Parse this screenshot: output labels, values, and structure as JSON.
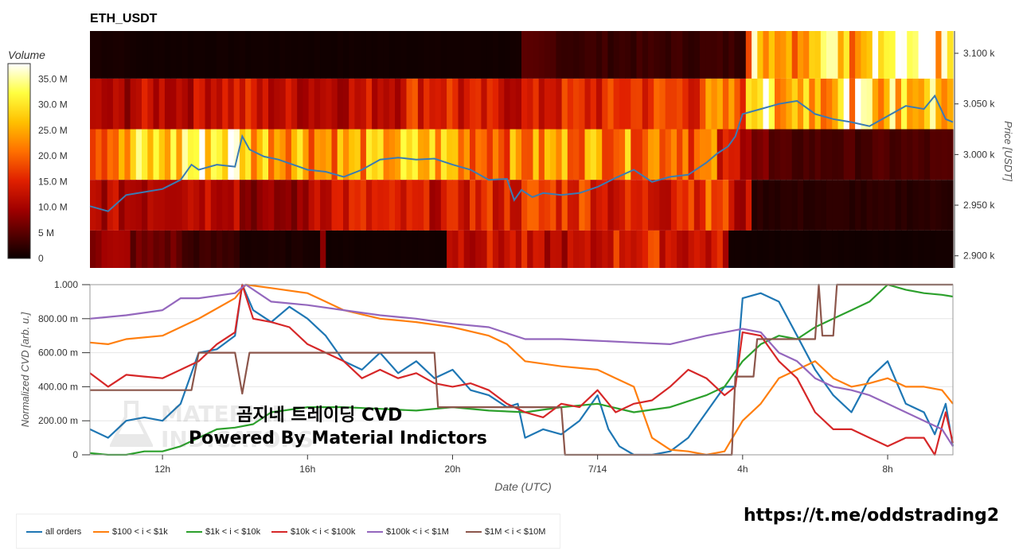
{
  "title": "ETH_USDT",
  "watermark": {
    "line1": "곰지네 트레이딩 CVD",
    "line2": "Powered By Material Indictors",
    "logo_line1": "MATERIAL",
    "logo_line2": "INDICATORS"
  },
  "url": "https://t.me/oddstrading2",
  "chart_data": [
    {
      "type": "heatmap",
      "title": "ETH_USDT",
      "ylabel": "Price [USDT]",
      "colorbar": {
        "title": "Volume",
        "ticks": [
          "0",
          "5 M",
          "10.0 M",
          "15.0 M",
          "20.0 M",
          "25.0 M",
          "30.0 M",
          "35.0 M"
        ],
        "range": [
          0,
          38
        ],
        "colorscale": "hot"
      },
      "price_ticks": [
        "2.900 k",
        "2.950 k",
        "3.000 k",
        "3.050 k",
        "3.100 k"
      ],
      "price_tick_values": [
        2900,
        2950,
        3000,
        3050,
        3100
      ],
      "ylim": [
        2888,
        3122
      ],
      "x_range_hours": [
        10.0,
        33.8
      ],
      "bands": [
        {
          "price_low": 3075,
          "price_high": 3122,
          "segments": [
            [
              10.0,
              1
            ],
            [
              11.0,
              0.5
            ],
            [
              21.8,
              4
            ],
            [
              23.0,
              3
            ],
            [
              28.5,
              6
            ],
            [
              33.8,
              6
            ]
          ],
          "after_shift": 30
        },
        {
          "price_low": 3025,
          "price_high": 3075,
          "segments": [
            [
              10.0,
              10
            ],
            [
              11.0,
              12
            ],
            [
              13.0,
              14
            ],
            [
              14.5,
              12
            ],
            [
              17.5,
              13
            ],
            [
              18.5,
              16
            ],
            [
              20.0,
              13
            ],
            [
              22.5,
              15
            ],
            [
              24.5,
              17
            ],
            [
              26.8,
              20
            ],
            [
              28.0,
              33
            ],
            [
              28.6,
              28
            ]
          ],
          "after_shift": 27
        },
        {
          "price_low": 2975,
          "price_high": 3025,
          "segments": [
            [
              10.0,
              22
            ],
            [
              11.0,
              28
            ],
            [
              12.5,
              33
            ],
            [
              14.2,
              27
            ],
            [
              16.0,
              24
            ],
            [
              18.0,
              26
            ],
            [
              20.0,
              22
            ],
            [
              22.5,
              24
            ],
            [
              24.5,
              23
            ],
            [
              26.5,
              20
            ],
            [
              27.2,
              13
            ],
            [
              28.2,
              7
            ],
            [
              28.6,
              4
            ]
          ],
          "after_shift": 6
        },
        {
          "price_low": 2925,
          "price_high": 2975,
          "segments": [
            [
              10.0,
              11
            ],
            [
              11.5,
              13
            ],
            [
              14.0,
              8
            ],
            [
              16.0,
              14
            ],
            [
              18.0,
              13
            ],
            [
              20.0,
              15
            ],
            [
              22.0,
              17
            ],
            [
              24.0,
              14
            ],
            [
              26.0,
              18
            ],
            [
              27.6,
              11
            ],
            [
              28.2,
              2
            ],
            [
              33.8,
              2
            ]
          ],
          "after_shift": 2
        },
        {
          "price_low": 2888,
          "price_high": 2925,
          "segments": [
            [
              10.0,
              9
            ],
            [
              11.0,
              6
            ],
            [
              12.5,
              3
            ],
            [
              14.0,
              1
            ],
            [
              16.2,
              7
            ],
            [
              16.5,
              0.5
            ],
            [
              19.8,
              13
            ],
            [
              22.0,
              11
            ],
            [
              24.0,
              15
            ],
            [
              26.0,
              13
            ],
            [
              27.5,
              0.5
            ],
            [
              33.8,
              1
            ]
          ],
          "after_shift": 1
        }
      ],
      "series": [
        {
          "name": "price",
          "color": "#3b7bb3",
          "x": [
            10.0,
            10.5,
            11.0,
            11.5,
            12.0,
            12.5,
            12.8,
            13.0,
            13.5,
            14.0,
            14.2,
            14.4,
            14.8,
            15.2,
            15.6,
            16.0,
            16.5,
            17.0,
            17.5,
            18.0,
            18.5,
            19.0,
            19.5,
            20.0,
            20.5,
            21.0,
            21.5,
            21.7,
            21.9,
            22.2,
            22.5,
            23.0,
            23.5,
            24.0,
            24.5,
            25.0,
            25.5,
            26.0,
            26.5,
            27.0,
            27.3,
            27.6,
            27.8,
            28.0,
            28.5,
            29.0,
            29.5,
            30.0,
            30.5,
            31.0,
            31.5,
            32.0,
            32.5,
            33.0,
            33.3,
            33.6,
            33.8
          ],
          "y": [
            2949,
            2944,
            2960,
            2963,
            2966,
            2975,
            2990,
            2985,
            2990,
            2988,
            3018,
            3005,
            2998,
            2995,
            2990,
            2985,
            2983,
            2978,
            2985,
            2995,
            2997,
            2995,
            2996,
            2990,
            2985,
            2975,
            2976,
            2955,
            2965,
            2958,
            2962,
            2960,
            2962,
            2968,
            2977,
            2985,
            2973,
            2978,
            2980,
            2992,
            3001,
            3008,
            3018,
            3040,
            3045,
            3050,
            3053,
            3040,
            3035,
            3032,
            3028,
            3038,
            3048,
            3045,
            3058,
            3035,
            3032
          ]
        }
      ]
    },
    {
      "type": "line",
      "xlabel": "Date (UTC)",
      "ylabel": "Normalized CVD [arb. u.]",
      "ylim": [
        0,
        1.0
      ],
      "yticks": [
        "0",
        "200.00 m",
        "400.00 m",
        "600.00 m",
        "800.00 m",
        "1.000"
      ],
      "ytick_values": [
        0,
        0.2,
        0.4,
        0.6,
        0.8,
        1.0
      ],
      "xlim": [
        10.0,
        33.8
      ],
      "xticks": [
        "12h",
        "16h",
        "20h",
        "7/14",
        "4h",
        "8h"
      ],
      "xtick_values": [
        12,
        16,
        20,
        24,
        28,
        32
      ],
      "series": [
        {
          "name": "all orders",
          "color": "#1f77b4",
          "x": [
            10.0,
            10.5,
            11.0,
            11.5,
            12.0,
            12.5,
            13.0,
            13.5,
            14.0,
            14.2,
            14.5,
            15.0,
            15.5,
            16.0,
            16.5,
            17.0,
            17.5,
            18.0,
            18.5,
            19.0,
            19.5,
            20.0,
            20.5,
            21.0,
            21.5,
            21.8,
            22.0,
            22.5,
            23.0,
            23.5,
            24.0,
            24.3,
            24.6,
            25.0,
            25.5,
            26.0,
            26.5,
            27.0,
            27.5,
            27.8,
            28.0,
            28.5,
            29.0,
            29.5,
            30.0,
            30.5,
            31.0,
            31.5,
            32.0,
            32.5,
            33.0,
            33.3,
            33.6,
            33.8
          ],
          "y": [
            0.15,
            0.1,
            0.2,
            0.22,
            0.2,
            0.3,
            0.6,
            0.62,
            0.7,
            1.0,
            0.85,
            0.78,
            0.87,
            0.8,
            0.7,
            0.55,
            0.5,
            0.6,
            0.48,
            0.55,
            0.45,
            0.5,
            0.38,
            0.35,
            0.28,
            0.3,
            0.1,
            0.15,
            0.12,
            0.2,
            0.35,
            0.15,
            0.05,
            0.0,
            0.0,
            0.02,
            0.1,
            0.25,
            0.4,
            0.4,
            0.92,
            0.95,
            0.9,
            0.7,
            0.5,
            0.35,
            0.25,
            0.45,
            0.55,
            0.3,
            0.25,
            0.12,
            0.3,
            0.05
          ]
        },
        {
          "name": "$100 < i < $1k",
          "color": "#ff7f0e",
          "x": [
            10.0,
            10.5,
            11.0,
            12.0,
            13.0,
            14.0,
            14.3,
            15.0,
            16.0,
            16.5,
            17.0,
            18.0,
            19.0,
            20.0,
            21.0,
            21.5,
            22.0,
            23.0,
            24.0,
            24.5,
            25.0,
            25.5,
            26.0,
            26.5,
            27.0,
            27.5,
            28.0,
            28.5,
            29.0,
            29.5,
            30.0,
            30.5,
            31.0,
            31.5,
            32.0,
            32.5,
            33.0,
            33.5,
            33.8
          ],
          "y": [
            0.66,
            0.65,
            0.68,
            0.7,
            0.8,
            0.92,
            1.0,
            0.98,
            0.95,
            0.9,
            0.85,
            0.8,
            0.78,
            0.75,
            0.7,
            0.65,
            0.55,
            0.52,
            0.5,
            0.45,
            0.4,
            0.1,
            0.03,
            0.02,
            0.0,
            0.02,
            0.2,
            0.3,
            0.45,
            0.5,
            0.55,
            0.45,
            0.4,
            0.42,
            0.45,
            0.4,
            0.4,
            0.38,
            0.3
          ]
        },
        {
          "name": "$1k < i < $10k",
          "color": "#2ca02c",
          "x": [
            10.0,
            10.5,
            11.0,
            11.5,
            12.0,
            12.5,
            13.0,
            13.5,
            14.0,
            14.5,
            15.0,
            16.0,
            17.0,
            18.0,
            19.0,
            20.0,
            21.0,
            22.0,
            23.0,
            24.0,
            25.0,
            26.0,
            27.0,
            27.5,
            28.0,
            28.5,
            29.0,
            29.5,
            30.0,
            30.5,
            31.0,
            31.5,
            32.0,
            32.5,
            33.0,
            33.5,
            33.8
          ],
          "y": [
            0.01,
            0.0,
            0.0,
            0.02,
            0.02,
            0.05,
            0.1,
            0.15,
            0.16,
            0.18,
            0.25,
            0.28,
            0.28,
            0.27,
            0.26,
            0.28,
            0.26,
            0.25,
            0.28,
            0.3,
            0.25,
            0.28,
            0.35,
            0.4,
            0.55,
            0.65,
            0.7,
            0.68,
            0.75,
            0.8,
            0.85,
            0.9,
            1.0,
            0.97,
            0.95,
            0.94,
            0.93
          ]
        },
        {
          "name": "$10k < i < $100k",
          "color": "#d62728",
          "x": [
            10.0,
            10.5,
            11.0,
            11.5,
            12.0,
            12.5,
            13.0,
            13.5,
            14.0,
            14.2,
            14.5,
            15.0,
            15.5,
            16.0,
            16.5,
            17.0,
            17.5,
            18.0,
            18.5,
            19.0,
            19.5,
            20.0,
            20.5,
            21.0,
            21.5,
            22.0,
            22.5,
            23.0,
            23.5,
            24.0,
            24.5,
            25.0,
            25.5,
            26.0,
            26.5,
            27.0,
            27.5,
            27.8,
            28.0,
            28.5,
            29.0,
            29.5,
            30.0,
            30.5,
            31.0,
            31.5,
            32.0,
            32.5,
            33.0,
            33.3,
            33.6,
            33.8
          ],
          "y": [
            0.48,
            0.4,
            0.47,
            0.46,
            0.45,
            0.5,
            0.55,
            0.65,
            0.72,
            1.0,
            0.8,
            0.78,
            0.75,
            0.65,
            0.6,
            0.55,
            0.45,
            0.5,
            0.45,
            0.48,
            0.42,
            0.4,
            0.42,
            0.38,
            0.3,
            0.25,
            0.22,
            0.3,
            0.28,
            0.38,
            0.25,
            0.3,
            0.32,
            0.4,
            0.5,
            0.45,
            0.35,
            0.4,
            0.72,
            0.7,
            0.55,
            0.45,
            0.25,
            0.15,
            0.15,
            0.1,
            0.05,
            0.1,
            0.1,
            0.0,
            0.25,
            0.07
          ]
        },
        {
          "name": "$100k < i < $1M",
          "color": "#9467bd",
          "x": [
            10.0,
            11.0,
            12.0,
            12.5,
            13.0,
            14.0,
            14.3,
            15.0,
            16.0,
            17.0,
            18.0,
            19.0,
            20.0,
            21.0,
            22.0,
            23.0,
            24.0,
            25.0,
            26.0,
            27.0,
            27.5,
            28.0,
            28.5,
            29.0,
            29.5,
            30.0,
            30.5,
            31.0,
            31.5,
            32.0,
            32.5,
            33.0,
            33.5,
            33.8
          ],
          "y": [
            0.8,
            0.82,
            0.85,
            0.92,
            0.92,
            0.95,
            1.0,
            0.9,
            0.88,
            0.85,
            0.82,
            0.8,
            0.77,
            0.75,
            0.68,
            0.68,
            0.67,
            0.66,
            0.65,
            0.7,
            0.72,
            0.74,
            0.72,
            0.6,
            0.55,
            0.45,
            0.4,
            0.38,
            0.35,
            0.3,
            0.25,
            0.2,
            0.15,
            0.05
          ]
        },
        {
          "name": "$1M < i < $10M",
          "color": "#8c564b",
          "step": true,
          "x": [
            10.0,
            12.8,
            13.0,
            14.0,
            14.2,
            14.4,
            15.0,
            19.5,
            19.6,
            22.0,
            22.5,
            23.0,
            23.1,
            27.0,
            27.7,
            27.8,
            28.3,
            28.4,
            29.5,
            30.0,
            30.1,
            30.2,
            30.3,
            30.5,
            30.6,
            33.8
          ],
          "y": [
            0.38,
            0.38,
            0.6,
            0.6,
            0.36,
            0.6,
            0.6,
            0.6,
            0.28,
            0.28,
            0.28,
            0.28,
            0.0,
            0.0,
            0.0,
            0.46,
            0.46,
            0.68,
            0.68,
            0.68,
            1.0,
            0.7,
            0.7,
            0.7,
            1.0,
            1.0
          ]
        }
      ]
    }
  ],
  "colors": {
    "background": "#ffffff",
    "axis": "#333333",
    "grid": "#e6e6e6"
  }
}
